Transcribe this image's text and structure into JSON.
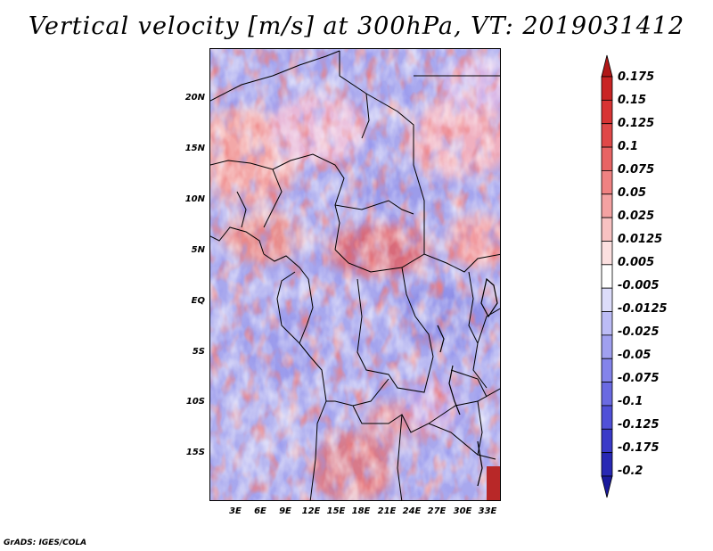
{
  "title": "Vertical velocity [m/s] at 300hPa, VT: 2019031412",
  "credit": "GrADS: IGES/COLA",
  "chart_data": {
    "type": "heatmap",
    "variable": "Vertical velocity",
    "units": "m/s",
    "level": "300hPa",
    "valid_time": "2019031412",
    "lat_ticks": [
      "20N",
      "15N",
      "10N",
      "5N",
      "EQ",
      "5S",
      "10S",
      "15S"
    ],
    "lon_ticks": [
      "3E",
      "6E",
      "9E",
      "12E",
      "15E",
      "18E",
      "21E",
      "24E",
      "27E",
      "30E",
      "33E"
    ],
    "colorbar_levels": [
      "0.175",
      "0.15",
      "0.125",
      "0.1",
      "0.075",
      "0.05",
      "0.025",
      "0.0125",
      "0.005",
      "-0.005",
      "-0.0125",
      "-0.025",
      "-0.05",
      "-0.075",
      "-0.1",
      "-0.125",
      "-0.175",
      "-0.2"
    ],
    "colorbar_colors": [
      "#b01818",
      "#c92424",
      "#d83434",
      "#e04848",
      "#e86464",
      "#f08282",
      "#f4a2a2",
      "#f8c2c2",
      "#fce0e0",
      "#ffffff",
      "#dcdcfa",
      "#bcbcf6",
      "#a0a0f0",
      "#8484ea",
      "#6a6ae2",
      "#5050d8",
      "#3a3ac8",
      "#2828b4",
      "#1a1a9c"
    ]
  }
}
